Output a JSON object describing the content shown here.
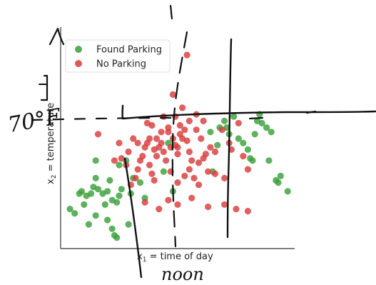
{
  "chart_data": {
    "type": "scatter",
    "title": "",
    "xlabel_main": "x",
    "xlabel_sub": "1",
    "xlabel_rest": " = time of day",
    "ylabel_main": "x",
    "ylabel_sub": "2",
    "ylabel_rest": " = temperature",
    "xlim": [
      0,
      10
    ],
    "ylim": [
      0,
      10
    ],
    "grid": false,
    "legend_placement": "top-left",
    "series": [
      {
        "name": "Found Parking",
        "color": "#3aa03a",
        "points": [
          [
            0.4,
            1.8
          ],
          [
            0.6,
            1.6
          ],
          [
            0.8,
            2.5
          ],
          [
            0.9,
            2.6
          ],
          [
            1.0,
            2.0
          ],
          [
            1.1,
            2.4
          ],
          [
            1.2,
            1.1
          ],
          [
            1.3,
            2.5
          ],
          [
            1.4,
            2.8
          ],
          [
            1.5,
            1.5
          ],
          [
            1.6,
            2.7
          ],
          [
            1.8,
            2.5
          ],
          [
            1.9,
            2.0
          ],
          [
            2.0,
            2.6
          ],
          [
            1.5,
            3.2
          ],
          [
            2.1,
            3.1
          ],
          [
            2.2,
            2.2
          ],
          [
            2.4,
            2.1
          ],
          [
            2.5,
            2.4
          ],
          [
            2.6,
            2.7
          ],
          [
            2.8,
            4.0
          ],
          [
            2.0,
            1.3
          ],
          [
            2.2,
            0.9
          ],
          [
            2.3,
            0.6
          ],
          [
            2.4,
            0.5
          ],
          [
            2.9,
            1.1
          ],
          [
            3.0,
            2.5
          ],
          [
            3.1,
            3.2
          ],
          [
            3.4,
            3.0
          ],
          [
            3.6,
            2.3
          ],
          [
            1.5,
            4.0
          ],
          [
            2.5,
            3.8
          ],
          [
            4.4,
            3.5
          ],
          [
            4.6,
            4.8
          ],
          [
            4.8,
            2.6
          ],
          [
            6.7,
            4.7
          ],
          [
            6.8,
            5.5
          ],
          [
            7.0,
            5.8
          ],
          [
            7.1,
            5.5
          ],
          [
            7.2,
            5.2
          ],
          [
            7.4,
            6.0
          ],
          [
            7.6,
            5.0
          ],
          [
            7.8,
            4.8
          ],
          [
            8.0,
            4.5
          ],
          [
            8.1,
            4.1
          ],
          [
            8.2,
            4.0
          ],
          [
            8.3,
            5.2
          ],
          [
            8.4,
            5.8
          ],
          [
            8.5,
            6.1
          ],
          [
            8.6,
            5.7
          ],
          [
            8.8,
            5.5
          ],
          [
            8.9,
            4.0
          ],
          [
            9.0,
            5.3
          ],
          [
            9.2,
            3.1
          ],
          [
            9.3,
            3.0
          ],
          [
            9.4,
            3.3
          ],
          [
            9.7,
            2.6
          ],
          [
            6.5,
            3.5
          ],
          [
            6.4,
            5.3
          ]
        ]
      },
      {
        "name": "No Parking",
        "color": "#d93c3c",
        "points": [
          [
            5.4,
            8.8
          ],
          [
            4.8,
            7.0
          ],
          [
            5.2,
            6.4
          ],
          [
            4.4,
            6.0
          ],
          [
            3.7,
            5.7
          ],
          [
            3.8,
            5.0
          ],
          [
            1.6,
            5.2
          ],
          [
            2.3,
            4.0
          ],
          [
            2.8,
            3.8
          ],
          [
            3.2,
            3.2
          ],
          [
            3.3,
            3.6
          ],
          [
            3.5,
            4.2
          ],
          [
            4.0,
            4.5
          ],
          [
            4.2,
            4.6
          ],
          [
            4.5,
            4.0
          ],
          [
            4.7,
            3.5
          ],
          [
            5.0,
            3.0
          ],
          [
            4.8,
            5.0
          ],
          [
            4.9,
            4.7
          ],
          [
            5.1,
            5.6
          ],
          [
            5.3,
            5.4
          ],
          [
            5.5,
            4.4
          ],
          [
            5.6,
            4.0
          ],
          [
            5.7,
            3.2
          ],
          [
            5.9,
            2.9
          ],
          [
            6.1,
            4.1
          ],
          [
            6.3,
            3.5
          ],
          [
            6.4,
            4.6
          ],
          [
            6.6,
            4.4
          ],
          [
            7.0,
            3.2
          ],
          [
            7.3,
            4.5
          ],
          [
            7.6,
            5.7
          ],
          [
            7.8,
            4.2
          ],
          [
            8.0,
            3.6
          ],
          [
            2.5,
            4.8
          ],
          [
            2.9,
            4.4
          ],
          [
            3.1,
            5.0
          ],
          [
            3.4,
            4.0
          ],
          [
            3.6,
            4.6
          ],
          [
            3.9,
            5.6
          ],
          [
            4.1,
            4.2
          ],
          [
            4.3,
            4.8
          ],
          [
            4.6,
            5.3
          ],
          [
            5.0,
            4.6
          ],
          [
            5.2,
            5.0
          ],
          [
            5.4,
            4.9
          ],
          [
            5.8,
            5.4
          ],
          [
            6.0,
            5.0
          ],
          [
            6.2,
            4.3
          ],
          [
            5.3,
            3.3
          ],
          [
            5.0,
            2.0
          ],
          [
            4.6,
            2.2
          ],
          [
            5.6,
            2.3
          ],
          [
            6.3,
            1.9
          ],
          [
            7.0,
            2.0
          ],
          [
            7.5,
            1.8
          ],
          [
            8.0,
            1.7
          ],
          [
            3.6,
            2.1
          ],
          [
            4.2,
            1.8
          ],
          [
            4.0,
            3.1
          ],
          [
            3.8,
            3.8
          ],
          [
            5.8,
            6.1
          ],
          [
            4.4,
            4.4
          ],
          [
            4.7,
            4.6
          ],
          [
            5.1,
            5.2
          ],
          [
            6.9,
            5.4
          ],
          [
            7.2,
            4.8
          ],
          [
            3.9,
            3.4
          ],
          [
            5.5,
            3.6
          ],
          [
            6.6,
            3.4
          ],
          [
            3.0,
            2.9
          ],
          [
            4.6,
            5.5
          ],
          [
            4.1,
            5.0
          ],
          [
            5.9,
            3.9
          ],
          [
            5.0,
            4.3
          ],
          [
            3.7,
            4.8
          ],
          [
            6.1,
            5.8
          ],
          [
            4.9,
            6.0
          ],
          [
            5.5,
            5.8
          ],
          [
            4.3,
            5.3
          ],
          [
            3.3,
            4.8
          ],
          [
            2.6,
            4.1
          ]
        ]
      }
    ]
  },
  "annotations": {
    "seventy": "70°F",
    "noon": "noon"
  }
}
